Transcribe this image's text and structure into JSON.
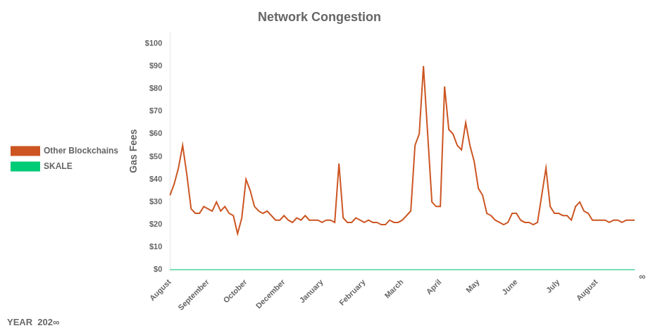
{
  "chart_data": {
    "type": "line",
    "title": "Network Congestion",
    "ylabel": "Gas Fees",
    "categories": [
      "August",
      null,
      null,
      null,
      null,
      null,
      null,
      null,
      null,
      "September",
      null,
      null,
      null,
      null,
      null,
      null,
      null,
      null,
      "October",
      null,
      null,
      null,
      null,
      null,
      null,
      null,
      null,
      "December",
      null,
      null,
      null,
      null,
      null,
      null,
      null,
      null,
      "January",
      null,
      null,
      null,
      null,
      null,
      null,
      null,
      null,
      null,
      "February",
      null,
      null,
      null,
      null,
      null,
      null,
      null,
      null,
      "March",
      null,
      null,
      null,
      null,
      null,
      null,
      null,
      null,
      "April",
      null,
      null,
      null,
      null,
      null,
      null,
      null,
      null,
      "May",
      null,
      null,
      null,
      null,
      null,
      null,
      null,
      null,
      "June",
      null,
      null,
      null,
      null,
      null,
      null,
      null,
      null,
      null,
      "July",
      null,
      null,
      null,
      null,
      null,
      null,
      null,
      null,
      "August",
      null,
      null,
      null,
      null,
      null,
      null,
      null,
      null,
      null
    ],
    "series": [
      {
        "name": "Other Blockchains",
        "color": "#cc5522",
        "values": [
          33,
          38,
          45,
          55,
          42,
          27,
          25,
          25,
          28,
          27,
          26,
          30,
          26,
          28,
          25,
          24,
          16,
          23,
          40,
          35,
          28,
          26,
          25,
          26,
          24,
          22,
          22,
          24,
          22,
          21,
          23,
          22,
          24,
          22,
          22,
          22,
          21,
          22,
          22,
          21,
          47,
          23,
          21,
          21,
          23,
          22,
          21,
          22,
          21,
          21,
          20,
          20,
          22,
          21,
          21,
          22,
          24,
          26,
          55,
          60,
          90,
          60,
          30,
          28,
          28,
          81,
          62,
          60,
          55,
          53,
          65,
          55,
          48,
          36,
          33,
          25,
          24,
          22,
          21,
          20,
          21,
          25,
          25,
          22,
          21,
          21,
          20,
          21,
          33,
          45,
          28,
          25,
          25,
          24,
          24,
          22,
          28,
          30,
          26,
          25,
          22,
          22,
          22,
          22,
          21,
          22,
          22,
          21,
          22,
          22,
          22
        ]
      },
      {
        "name": "SKALE",
        "color": "#00cc77",
        "values": [
          0,
          0,
          0,
          0,
          0,
          0,
          0,
          0,
          0,
          0,
          0,
          0,
          0,
          0,
          0,
          0,
          0,
          0,
          0,
          0,
          0,
          0,
          0,
          0,
          0,
          0,
          0,
          0,
          0,
          0,
          0,
          0,
          0,
          0,
          0,
          0,
          0,
          0,
          0,
          0,
          0,
          0,
          0,
          0,
          0,
          0,
          0,
          0,
          0,
          0,
          0,
          0,
          0,
          0,
          0,
          0,
          0,
          0,
          0,
          0,
          0,
          0,
          0,
          0,
          0,
          0,
          0,
          0,
          0,
          0,
          0,
          0,
          0,
          0,
          0,
          0,
          0,
          0,
          0,
          0,
          0,
          0,
          0,
          0,
          0,
          0,
          0,
          0,
          0,
          0,
          0,
          0,
          0,
          0,
          0,
          0,
          0,
          0,
          0,
          0,
          0,
          0,
          0,
          0,
          0,
          0,
          0,
          0,
          0,
          0,
          0
        ]
      }
    ],
    "ylim": [
      0,
      105
    ],
    "yticks": [
      {
        "value": 0,
        "label": "$0"
      },
      {
        "value": 10,
        "label": "$10"
      },
      {
        "value": 20,
        "label": "$20"
      },
      {
        "value": 30,
        "label": "$30"
      },
      {
        "value": 40,
        "label": "$40"
      },
      {
        "value": 50,
        "label": "$50"
      },
      {
        "value": 60,
        "label": "$60"
      },
      {
        "value": 70,
        "label": "$70"
      },
      {
        "value": 80,
        "label": "$80"
      },
      {
        "value": 90,
        "label": "$90"
      },
      {
        "value": 100,
        "label": "$100"
      }
    ],
    "grid": false,
    "legend": "left",
    "annotations": [
      "YEAR  202∞",
      "∞"
    ]
  }
}
